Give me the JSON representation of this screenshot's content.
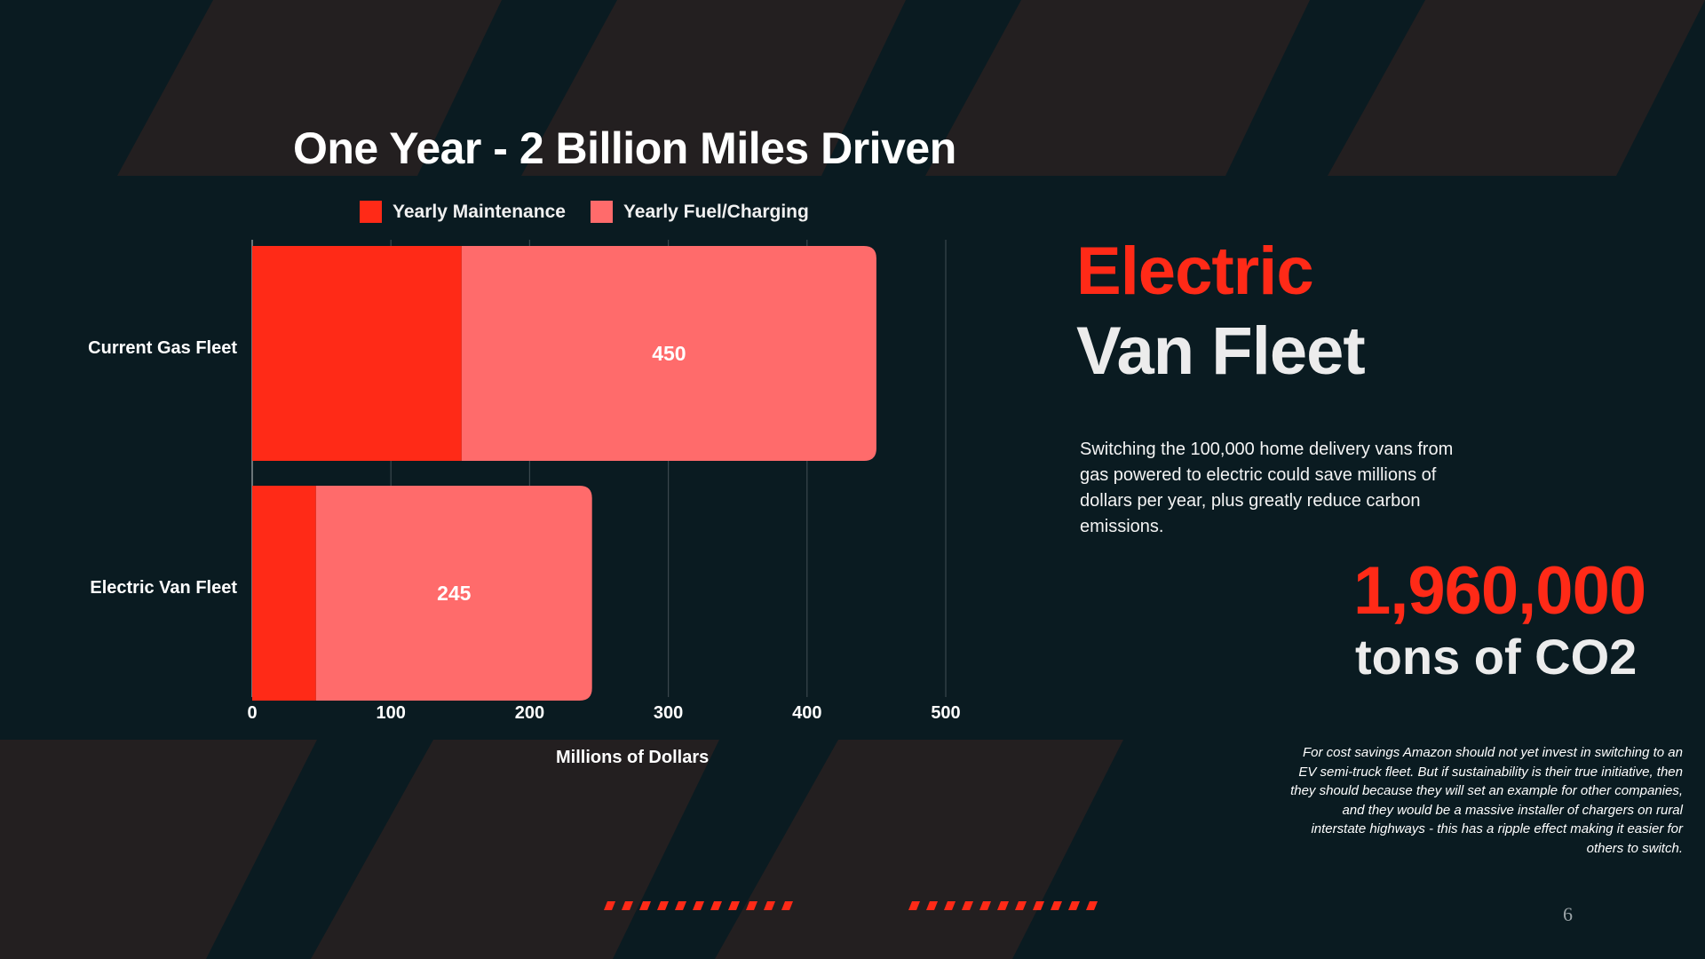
{
  "slide": {
    "heading_line1": "Electric",
    "heading_line2": "Van Fleet",
    "body": "Switching the 100,000 home delivery vans from gas powered to electric could save millions of dollars per year, plus greatly reduce carbon emissions.",
    "stat_value": "1,960,000",
    "stat_label": "tons of CO2",
    "footnote": "For cost savings Amazon should not yet invest in switching to an EV semi-truck fleet. But if sustainability is their true initiative, then they should because they will set an example for other companies, and they would be a massive installer of chargers on rural interstate highways - this has a ripple effect making it easier for others to switch.",
    "page_number": "6"
  },
  "colors": {
    "background": "#0a1b21",
    "stripe": "#231f20",
    "accent_red": "#ff2a17",
    "light_red": "#ff6b6b",
    "heading_light": "#ececec"
  },
  "chart_data": {
    "type": "bar",
    "orientation": "horizontal",
    "stacked": true,
    "title": "One Year - 2 Billion Miles Driven",
    "xlabel": "Millions of Dollars",
    "ylabel": "",
    "categories": [
      "Current Gas Fleet",
      "Electric Van Fleet"
    ],
    "series": [
      {
        "name": "Yearly Maintenance",
        "values": [
          151,
          46
        ],
        "color": "#ff2a17"
      },
      {
        "name": "Yearly Fuel/Charging",
        "values": [
          299,
          199
        ],
        "color": "#ff6b6b"
      }
    ],
    "total_labels": [
      "450",
      "245"
    ],
    "xlim": [
      0,
      500
    ],
    "xticks": [
      "0",
      "100",
      "200",
      "300",
      "400",
      "500"
    ],
    "grid": true,
    "legend_position": "top"
  }
}
